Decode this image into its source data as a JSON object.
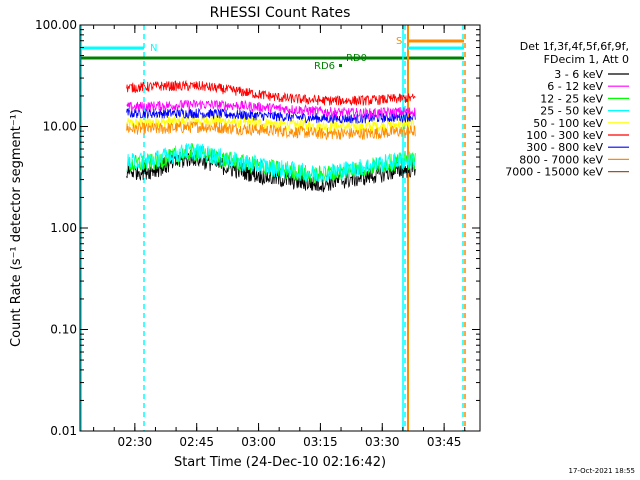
{
  "chart_data": {
    "type": "line",
    "title": "RHESSI Count Rates",
    "xlabel": "Start Time (24-Dec-10 02:16:42)",
    "ylabel": "Count Rate (s⁻¹ detector segment⁻¹)",
    "yscale": "log",
    "ylim": [
      0.01,
      100
    ],
    "yticks": [
      "0.01",
      "0.10",
      "1.00",
      "10.00",
      "100.00"
    ],
    "xlim": [
      "02:16:42",
      "03:53:42"
    ],
    "xticks": [
      "02:30",
      "02:45",
      "03:00",
      "03:15",
      "03:30",
      "03:45"
    ],
    "grid": false,
    "legend_position": "right",
    "legend_header": [
      "Det 1f,3f,4f,5f,6f,9f,",
      "FDecim 1, Att 0"
    ],
    "series": [
      {
        "name": "3 - 6 keV",
        "color": "#000000",
        "x": [
          "02:28",
          "02:34",
          "02:44",
          "02:54",
          "03:04",
          "03:14",
          "03:24",
          "03:34",
          "03:38"
        ],
        "values": [
          3.6,
          3.7,
          5.0,
          3.8,
          3.1,
          2.7,
          3.1,
          3.7,
          3.9
        ]
      },
      {
        "name": "6 - 12 keV",
        "color": "#ff00ff",
        "x": [
          "02:28",
          "02:36",
          "02:46",
          "02:56",
          "03:06",
          "03:16",
          "03:26",
          "03:36",
          "03:38"
        ],
        "values": [
          15.5,
          16,
          16.5,
          16,
          15,
          14,
          13.5,
          14,
          14
        ]
      },
      {
        "name": "12 - 25 keV",
        "color": "#00ff00",
        "x": [
          "02:28",
          "02:34",
          "02:44",
          "02:54",
          "03:04",
          "03:14",
          "03:24",
          "03:34",
          "03:38"
        ],
        "values": [
          4.2,
          4.4,
          5.6,
          4.5,
          3.8,
          3.3,
          3.8,
          4.5,
          4.6
        ]
      },
      {
        "name": "25 - 50 keV",
        "color": "#00ffff",
        "x": [
          "02:28",
          "02:34",
          "02:44",
          "02:54",
          "03:04",
          "03:14",
          "03:24",
          "03:34",
          "03:38"
        ],
        "values": [
          4.4,
          4.7,
          5.8,
          4.6,
          3.9,
          3.4,
          3.9,
          4.6,
          4.7
        ]
      },
      {
        "name": "50 - 100 keV",
        "color": "#ffff00",
        "x": [
          "02:28",
          "02:36",
          "02:46",
          "02:56",
          "03:06",
          "03:16",
          "03:26",
          "03:36",
          "03:38"
        ],
        "values": [
          10.5,
          11,
          11.5,
          11,
          10.5,
          10,
          10,
          10.5,
          10.5
        ]
      },
      {
        "name": "100 - 300 keV",
        "color": "#ff0000",
        "x": [
          "02:28",
          "02:36",
          "02:46",
          "02:56",
          "03:06",
          "03:16",
          "03:26",
          "03:36",
          "03:38"
        ],
        "values": [
          24,
          25,
          25,
          22,
          19,
          18,
          18,
          19,
          19
        ]
      },
      {
        "name": "300 - 800 keV",
        "color": "#0000ff",
        "x": [
          "02:28",
          "02:36",
          "02:46",
          "02:56",
          "03:06",
          "03:16",
          "03:26",
          "03:36",
          "03:38"
        ],
        "values": [
          13.5,
          13.5,
          13.5,
          13,
          12.5,
          12,
          12,
          12.5,
          12.5
        ]
      },
      {
        "name": "800 - 7000 keV",
        "color": "#ff8c00",
        "x": [
          "02:28",
          "02:36",
          "02:46",
          "02:56",
          "03:06",
          "03:16",
          "03:26",
          "03:36",
          "03:38"
        ],
        "values": [
          9.5,
          9.5,
          10,
          9.5,
          9,
          8.5,
          8.5,
          9,
          9
        ]
      },
      {
        "name": "7000 - 15000 keV",
        "color": "#a0522d",
        "x": [],
        "values": []
      }
    ],
    "annotations": [
      {
        "text": "N",
        "color": "#00ffff"
      },
      {
        "text": "S",
        "color": "#ff8c00"
      },
      {
        "text": "RD0",
        "color": "#008000"
      },
      {
        "text": "RD6",
        "color": "#008000"
      }
    ]
  },
  "footer": {
    "timestamp": "17-Oct-2021 18:55"
  }
}
